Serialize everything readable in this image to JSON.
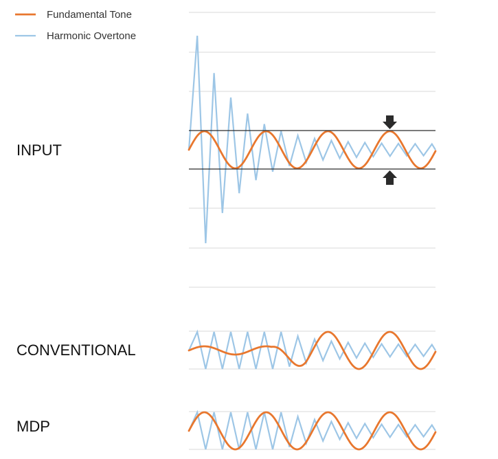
{
  "legend": {
    "fundamental_label": "Fundamental Tone",
    "harmonic_label": "Harmonic Overtone"
  },
  "panels": {
    "input_label": "INPUT",
    "conventional_label": "CONVENTIONAL",
    "mdp_label": "MDP"
  },
  "colors": {
    "fundamental": "#e8772e",
    "harmonic": "#9dc6e6",
    "grid": "#d9d9d9",
    "threshold": "#2b2b2b",
    "arrow": "#2b2b2b"
  },
  "icons": {
    "threshold_arrow_down": "arrow-down-icon",
    "threshold_arrow_up": "arrow-up-icon"
  }
}
